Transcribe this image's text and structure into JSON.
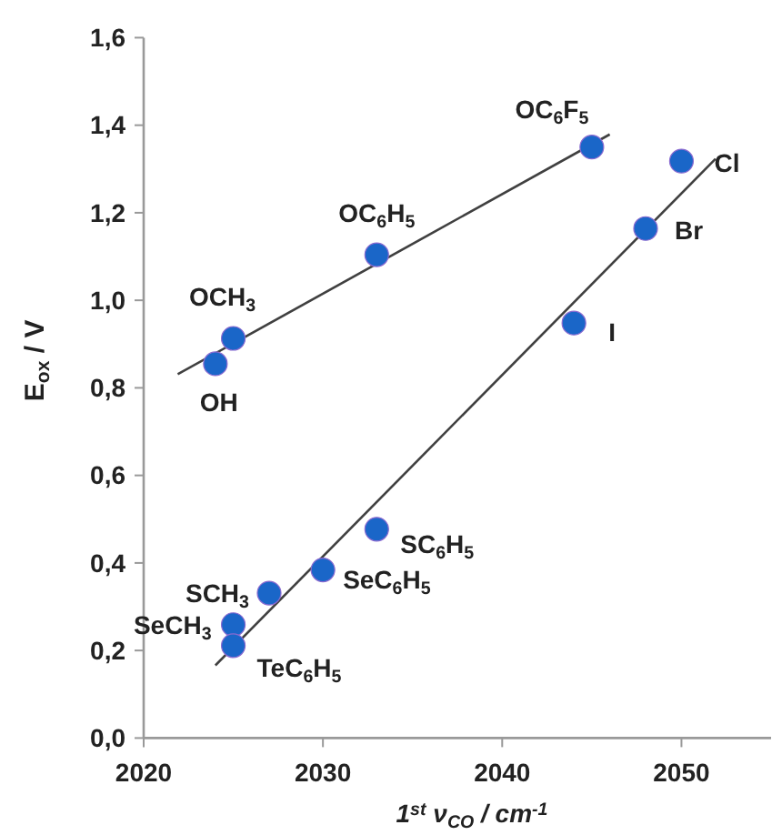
{
  "chart_data": {
    "type": "scatter",
    "xlabel": "1$^{st}$ ν$_{CO}$ / cm$^{-1}$",
    "ylabel": "E$_{ox}$ / V",
    "xlim": [
      2020,
      2055
    ],
    "xticks": [
      2020,
      2030,
      2040,
      2050
    ],
    "ylim": [
      0,
      1.6
    ],
    "yticks": [
      {
        "value": 0,
        "label": "0,0"
      },
      {
        "value": 0.2,
        "label": "0,2"
      },
      {
        "value": 0.4,
        "label": "0,4"
      },
      {
        "value": 0.6,
        "label": "0,6"
      },
      {
        "value": 0.8,
        "label": "0,8"
      },
      {
        "value": 1.0,
        "label": "1,0"
      },
      {
        "value": 1.2,
        "label": "1,2"
      },
      {
        "value": 1.4,
        "label": "1,4"
      },
      {
        "value": 1.6,
        "label": "1,6"
      }
    ],
    "grid": false,
    "series": [
      {
        "type": "line",
        "color": "#404040",
        "x": [
          2021.9,
          2046.0
        ],
        "values": [
          0.831,
          1.379
        ]
      },
      {
        "type": "line",
        "color": "#404040",
        "x": [
          2024,
          2051.9
        ],
        "values": [
          0.166,
          1.323
        ]
      },
      {
        "marker": "circle",
        "color": "#1a66c8",
        "x": [
          2024,
          2025,
          2033,
          2045,
          2050,
          2048,
          2044,
          2033,
          2030,
          2027,
          2025,
          2025
        ],
        "values": [
          0.855,
          0.913,
          1.104,
          1.35,
          1.318,
          1.164,
          0.948,
          0.477,
          0.384,
          0.331,
          0.259,
          0.211
        ]
      }
    ],
    "annotations": [
      {
        "text": "OH",
        "x": 2024,
        "y": 0.855
      },
      {
        "text": "OCH$_{3}$",
        "x": 2025,
        "y": 0.913
      },
      {
        "text": "OC$_{6}$H$_{5}$",
        "x": 2033,
        "y": 1.104
      },
      {
        "text": "OC$_{6}$F$_{5}$",
        "x": 2045,
        "y": 1.35
      },
      {
        "text": "Cl",
        "x": 2050,
        "y": 1.318
      },
      {
        "text": "Br",
        "x": 2048,
        "y": 1.164
      },
      {
        "text": "I",
        "x": 2044,
        "y": 0.948
      },
      {
        "text": "SC$_{6}$H$_{5}$",
        "x": 2033,
        "y": 0.477
      },
      {
        "text": "SeC$_{6}$H$_{5}$",
        "x": 2030,
        "y": 0.384
      },
      {
        "text": "SCH$_{3}$",
        "x": 2027,
        "y": 0.331
      },
      {
        "text": "SeCH$_{3}$",
        "x": 2025,
        "y": 0.259
      },
      {
        "text": "TeC$_{6}$H$_{5}$",
        "x": 2025,
        "y": 0.211
      }
    ]
  }
}
